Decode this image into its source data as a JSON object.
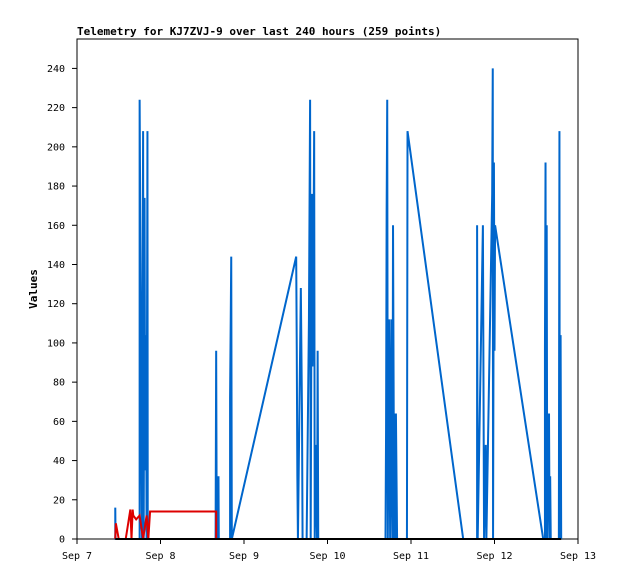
{
  "chart_data": {
    "type": "line",
    "title": "Telemetry for KJ7ZVJ-9 over last 240 hours (259 points)",
    "xlabel": "",
    "ylabel": "Values",
    "xlim": [
      "Sep 7",
      "Sep 13"
    ],
    "ylim": [
      0,
      255
    ],
    "x_ticks": [
      "Sep 7",
      "Sep 8",
      "Sep 9",
      "Sep 10",
      "Sep 11",
      "Sep 12",
      "Sep 13"
    ],
    "y_ticks": [
      0,
      20,
      40,
      60,
      80,
      100,
      120,
      140,
      160,
      180,
      200,
      220,
      240
    ],
    "grid": false,
    "colors": {
      "blue": "#0066cc",
      "red": "#dd0000",
      "black": "#000000"
    },
    "series": [
      {
        "color": "#0066cc",
        "points": [
          [
            "Sep 7 11:00",
            0
          ],
          [
            "Sep 7 11:00",
            16
          ],
          [
            "Sep 7 11:05",
            0
          ],
          [
            "Sep 7 18:00",
            0
          ],
          [
            "Sep 7 18:00",
            224
          ],
          [
            "Sep 7 18:20",
            112
          ],
          [
            "Sep 7 18:40",
            0
          ],
          [
            "Sep 7 19:00",
            208
          ],
          [
            "Sep 7 19:10",
            0
          ],
          [
            "Sep 7 19:25",
            174
          ],
          [
            "Sep 7 19:35",
            35
          ],
          [
            "Sep 7 19:50",
            104
          ],
          [
            "Sep 7 20:00",
            0
          ],
          [
            "Sep 7 20:15",
            208
          ],
          [
            "Sep 7 20:20",
            0
          ],
          [
            "Sep 8 15:50",
            0
          ],
          [
            "Sep 8 16:00",
            96
          ],
          [
            "Sep 8 16:05",
            48
          ],
          [
            "Sep 8 16:10",
            0
          ],
          [
            "Sep 8 16:40",
            32
          ],
          [
            "Sep 8 16:45",
            0
          ],
          [
            "Sep 8 20:00",
            0
          ],
          [
            "Sep 8 20:00",
            72
          ],
          [
            "Sep 8 20:20",
            144
          ],
          [
            "Sep 8 20:30",
            0
          ],
          [
            "Sep 9 15:00",
            144
          ],
          [
            "Sep 9 15:10",
            96
          ],
          [
            "Sep 9 15:20",
            32
          ],
          [
            "Sep 9 15:30",
            0
          ],
          [
            "Sep 9 16:20",
            128
          ],
          [
            "Sep 9 16:40",
            64
          ],
          [
            "Sep 9 16:50",
            0
          ],
          [
            "Sep 9 18:00",
            0
          ],
          [
            "Sep 9 18:40",
            112
          ],
          [
            "Sep 9 19:00",
            224
          ],
          [
            "Sep 9 19:10",
            0
          ],
          [
            "Sep 9 19:30",
            176
          ],
          [
            "Sep 9 19:40",
            88
          ],
          [
            "Sep 9 20:00",
            156
          ],
          [
            "Sep 9 20:10",
            208
          ],
          [
            "Sep 9 20:20",
            0
          ],
          [
            "Sep 9 20:40",
            48
          ],
          [
            "Sep 9 21:00",
            0
          ],
          [
            "Sep 9 21:10",
            96
          ],
          [
            "Sep 9 21:20",
            0
          ],
          [
            "Sep 10 16:40",
            0
          ],
          [
            "Sep 10 16:50",
            56
          ],
          [
            "Sep 10 17:00",
            168
          ],
          [
            "Sep 10 17:10",
            224
          ],
          [
            "Sep 10 17:20",
            0
          ],
          [
            "Sep 10 17:40",
            112
          ],
          [
            "Sep 10 17:50",
            56
          ],
          [
            "Sep 10 18:00",
            0
          ],
          [
            "Sep 10 18:20",
            112
          ],
          [
            "Sep 10 18:30",
            36
          ],
          [
            "Sep 10 18:40",
            0
          ],
          [
            "Sep 10 18:50",
            160
          ],
          [
            "Sep 10 19:00",
            80
          ],
          [
            "Sep 10 19:10",
            0
          ],
          [
            "Sep 10 19:20",
            64
          ],
          [
            "Sep 10 19:30",
            0
          ],
          [
            "Sep 10 19:40",
            64
          ],
          [
            "Sep 10 20:00",
            0
          ],
          [
            "Sep 10 22:50",
            0
          ],
          [
            "Sep 10 23:00",
            208
          ],
          [
            "Sep 11 15:00",
            0
          ],
          [
            "Sep 11 19:00",
            0
          ],
          [
            "Sep 11 19:00",
            160
          ],
          [
            "Sep 11 19:10",
            0
          ],
          [
            "Sep 11 20:40",
            160
          ],
          [
            "Sep 11 20:50",
            80
          ],
          [
            "Sep 11 21:00",
            0
          ],
          [
            "Sep 11 21:30",
            48
          ],
          [
            "Sep 11 21:40",
            0
          ],
          [
            "Sep 11 23:20",
            176
          ],
          [
            "Sep 11 23:30",
            240
          ],
          [
            "Sep 11 23:35",
            0
          ],
          [
            "Sep 11 23:50",
            192
          ],
          [
            "Sep 12 00:00",
            96
          ],
          [
            "Sep 12 00:10",
            160
          ],
          [
            "Sep 12 14:00",
            0
          ],
          [
            "Sep 12 14:30",
            0
          ],
          [
            "Sep 12 14:30",
            96
          ],
          [
            "Sep 12 14:40",
            192
          ],
          [
            "Sep 12 14:50",
            0
          ],
          [
            "Sep 12 15:00",
            160
          ],
          [
            "Sep 12 15:10",
            0
          ],
          [
            "Sep 12 15:30",
            48
          ],
          [
            "Sep 12 15:40",
            64
          ],
          [
            "Sep 12 15:50",
            0
          ],
          [
            "Sep 12 16:00",
            32
          ],
          [
            "Sep 12 16:10",
            0
          ],
          [
            "Sep 12 18:30",
            0
          ],
          [
            "Sep 12 18:40",
            208
          ],
          [
            "Sep 12 18:45",
            0
          ],
          [
            "Sep 12 19:00",
            104
          ],
          [
            "Sep 12 19:10",
            0
          ]
        ]
      },
      {
        "color": "#dd0000",
        "points": [
          [
            "Sep 7 11:00",
            0
          ],
          [
            "Sep 7 11:10",
            8
          ],
          [
            "Sep 7 12:00",
            0
          ],
          [
            "Sep 7 14:00",
            0
          ],
          [
            "Sep 7 15:20",
            15
          ],
          [
            "Sep 7 15:40",
            0
          ],
          [
            "Sep 7 16:00",
            15
          ],
          [
            "Sep 7 16:10",
            12
          ],
          [
            "Sep 7 17:00",
            10
          ],
          [
            "Sep 7 18:00",
            12
          ],
          [
            "Sep 7 19:00",
            0
          ],
          [
            "Sep 7 20:00",
            12
          ],
          [
            "Sep 7 20:30",
            0
          ],
          [
            "Sep 7 21:00",
            14
          ],
          [
            "Sep 8 16:00",
            14
          ],
          [
            "Sep 8 16:00",
            0
          ]
        ]
      },
      {
        "color": "#000000",
        "points": [
          [
            "Sep 7 11:00",
            0
          ],
          [
            "Sep 12 19:10",
            0
          ]
        ]
      }
    ]
  }
}
